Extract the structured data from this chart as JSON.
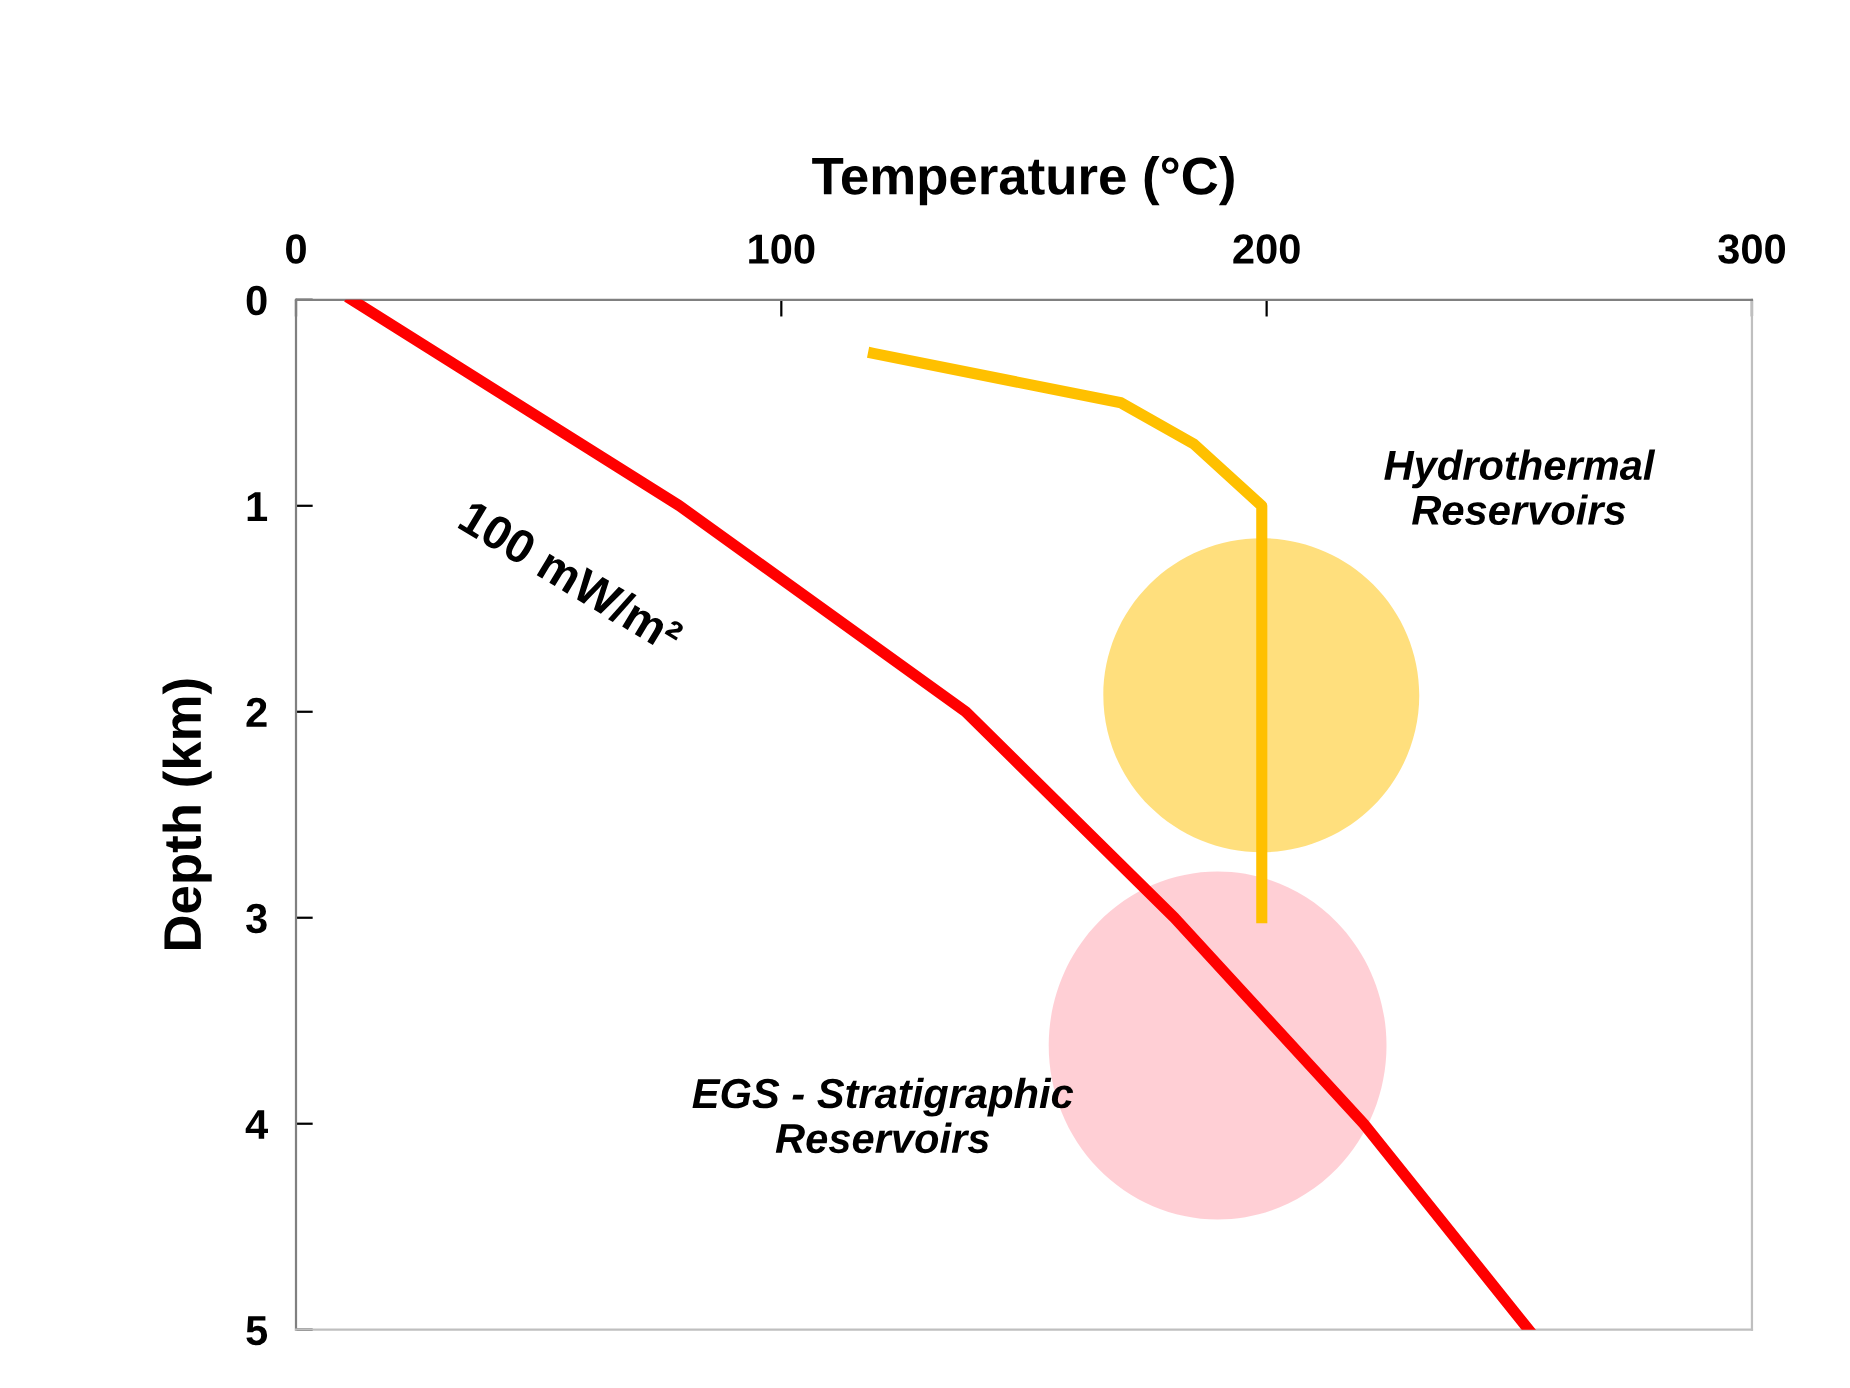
{
  "chart_data": {
    "type": "line",
    "xlabel": "Temperature (°C)",
    "ylabel": "Depth (km)",
    "xlim": [
      0,
      300
    ],
    "xticks": [
      0,
      100,
      200,
      300
    ],
    "ylim": [
      5,
      0
    ],
    "yticks": [
      0,
      1,
      2,
      3,
      4,
      5
    ],
    "grid": false,
    "legend": false,
    "marker": "none",
    "line_style": "solid",
    "series": [
      {
        "color": "#ff0000",
        "x": [
          11.5,
          79,
          138,
          181,
          220,
          254
        ],
        "values": [
          0,
          1,
          2,
          3,
          4,
          5
        ]
      },
      {
        "color": "#ffc000",
        "x": [
          119,
          170,
          185,
          199,
          199
        ],
        "values": [
          0.26,
          0.5,
          0.7,
          1.0,
          3.0
        ]
      }
    ],
    "annotations": [
      "100 mW/m²",
      "Hydrothermal\nReservoirs",
      "EGS - Stratigraphic\nReservoirs"
    ]
  }
}
